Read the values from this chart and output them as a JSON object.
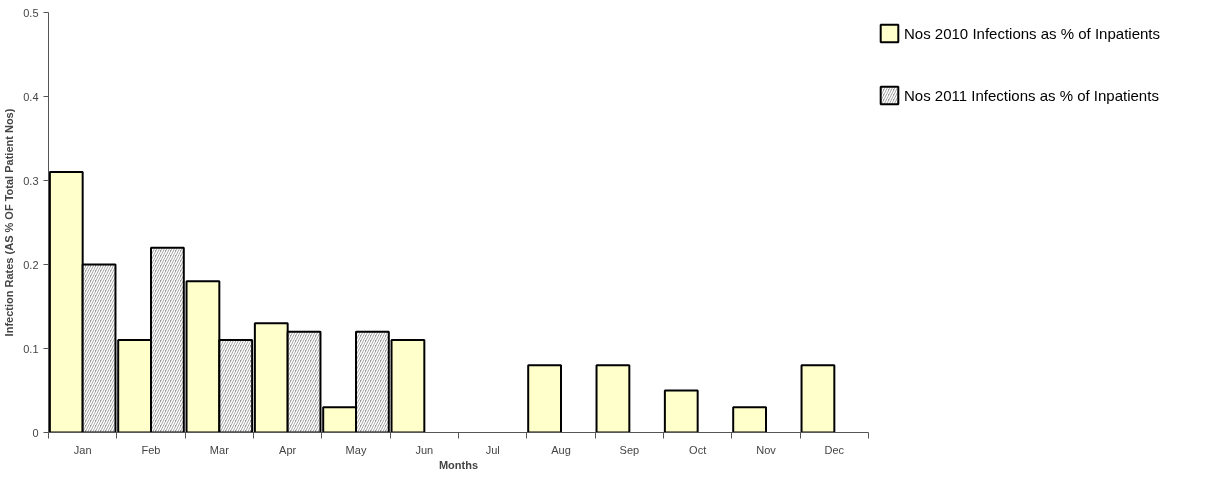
{
  "chart_data": {
    "type": "bar",
    "xlabel": "Months",
    "ylabel": "Infection Rates (AS % OF Total Patient Nos)",
    "categories": [
      "Jan",
      "Feb",
      "Mar",
      "Apr",
      "May",
      "Jun",
      "Jul",
      "Aug",
      "Sep",
      "Oct",
      "Nov",
      "Dec"
    ],
    "series": [
      {
        "name": "Nos 2010 Infections as % of Inpatients",
        "color": "#ffffcc",
        "values": [
          0.31,
          0.11,
          0.18,
          0.13,
          0.03,
          0.11,
          null,
          0.08,
          0.08,
          0.05,
          0.03,
          0.08
        ]
      },
      {
        "name": "Nos 2011 Infections as % of Inpatients",
        "color": "#999999",
        "values": [
          0.2,
          0.22,
          0.11,
          0.12,
          0.12,
          null,
          null,
          null,
          null,
          null,
          null,
          null
        ]
      }
    ],
    "ylim": [
      0,
      0.5
    ],
    "yticks": [
      0,
      0.1,
      0.2,
      0.3,
      0.4,
      0.5
    ],
    "grid": false,
    "legend": "right"
  }
}
